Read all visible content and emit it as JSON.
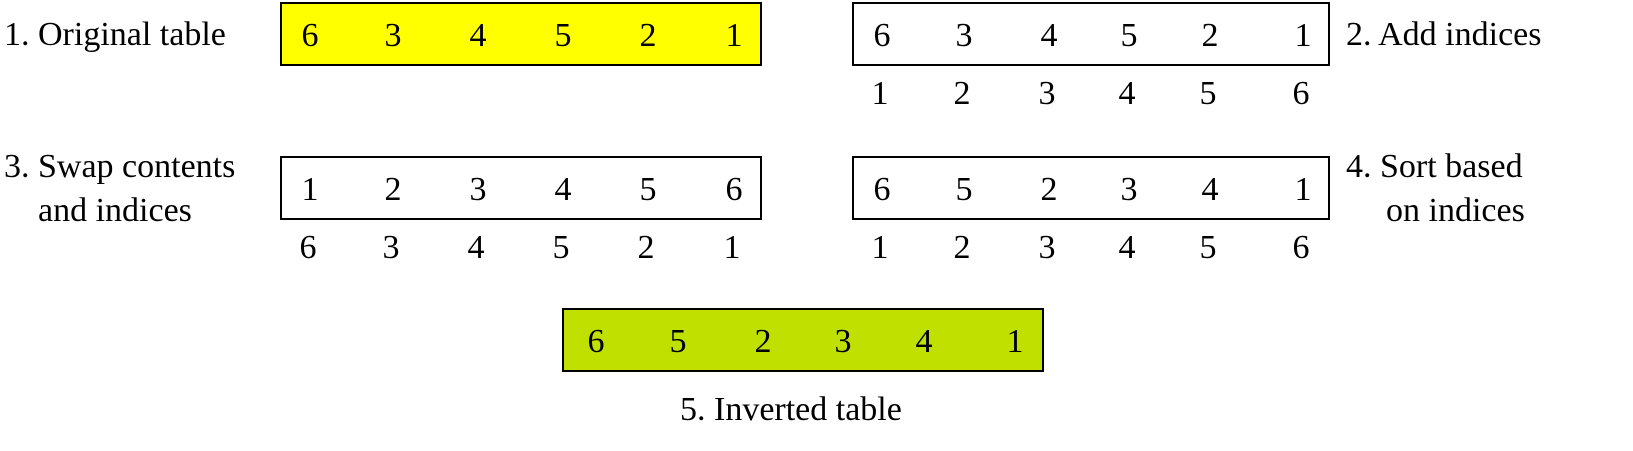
{
  "steps": {
    "original": {
      "label": "1. Original table",
      "values": [
        "6",
        "3",
        "4",
        "5",
        "2",
        "1"
      ],
      "fill": "#ffff00"
    },
    "add_indices": {
      "label": "2. Add indices",
      "values": [
        "6",
        "3",
        "4",
        "5",
        "2",
        "1"
      ],
      "indices": [
        "1",
        "2",
        "3",
        "4",
        "5",
        "6"
      ]
    },
    "swap": {
      "label_lines": [
        "3. Swap contents",
        "and indices"
      ],
      "values": [
        "1",
        "2",
        "3",
        "4",
        "5",
        "6"
      ],
      "indices": [
        "6",
        "3",
        "4",
        "5",
        "2",
        "1"
      ]
    },
    "sort": {
      "label_lines": [
        "4. Sort based",
        "on indices"
      ],
      "values": [
        "6",
        "5",
        "2",
        "3",
        "4",
        "1"
      ],
      "indices": [
        "1",
        "2",
        "3",
        "4",
        "5",
        "6"
      ]
    },
    "inverted": {
      "label": "5. Inverted table",
      "values": [
        "6",
        "5",
        "2",
        "3",
        "4",
        "1"
      ],
      "fill": "#c0e000"
    }
  }
}
